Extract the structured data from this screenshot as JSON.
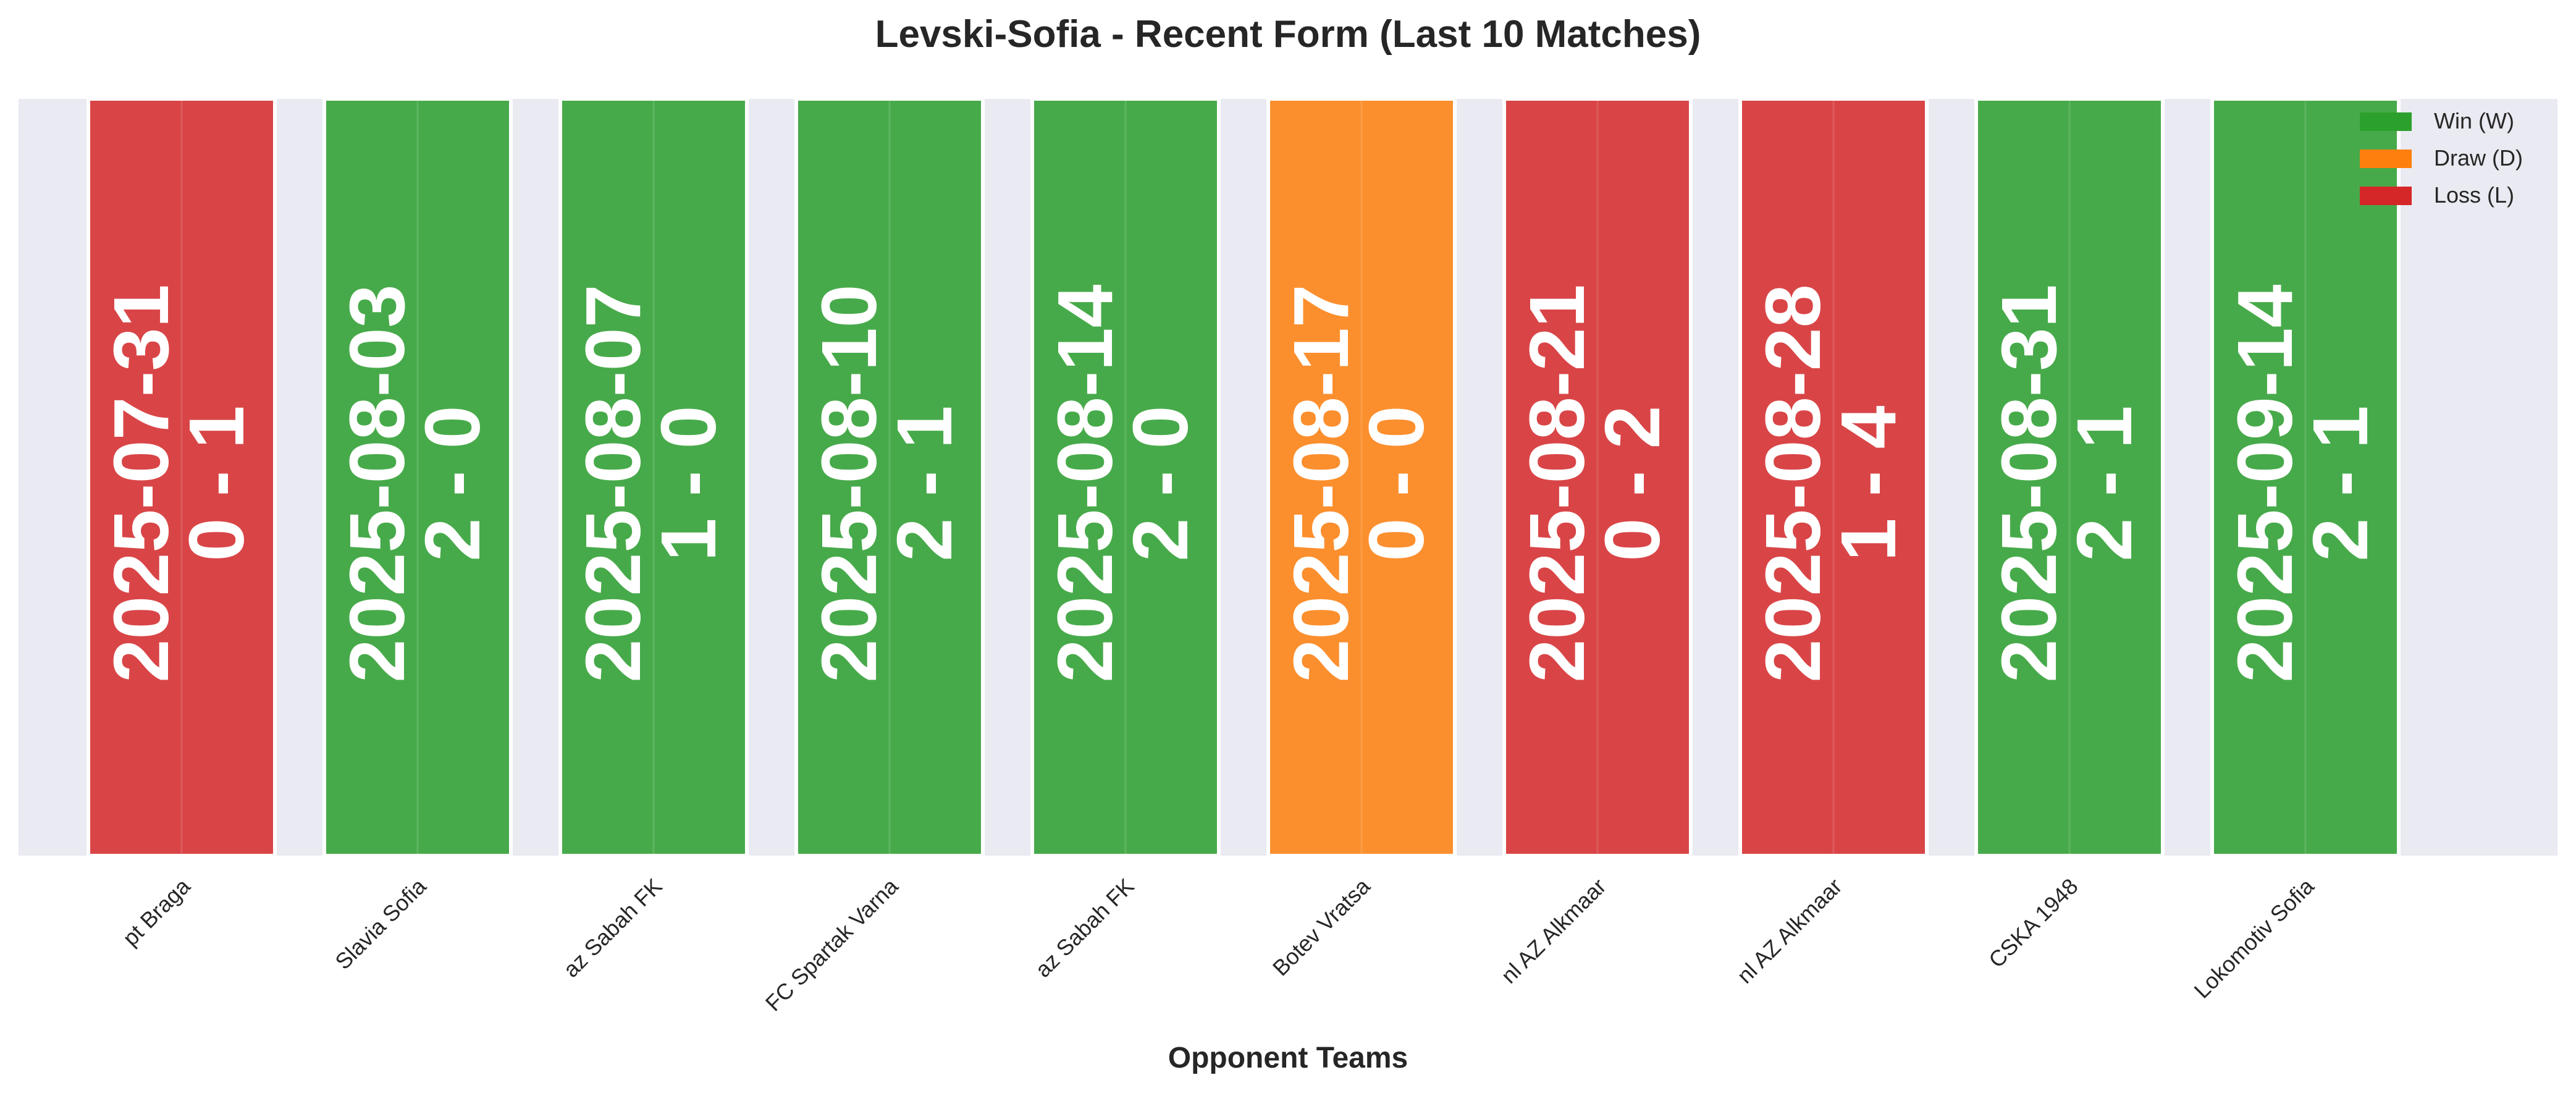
{
  "chart_data": {
    "type": "bar",
    "title": "Levski-Sofia - Recent Form (Last 10 Matches)",
    "xlabel": "Opponent Teams",
    "ylabel": "",
    "ylim": [
      0,
      1
    ],
    "grid": true,
    "legend_position": "top-right",
    "categories": [
      "pt Braga",
      "Slavia Sofia",
      "az Sabah FK",
      "FC Spartak Varna",
      "az Sabah FK",
      "Botev Vratsa",
      "nl AZ Alkmaar",
      "nl AZ Alkmaar",
      "CSKA 1948",
      "Lokomotiv Sofia"
    ],
    "matches": [
      {
        "opponent": "pt Braga",
        "date": "2025-07-31",
        "score": "0 - 1",
        "result": "L"
      },
      {
        "opponent": "Slavia Sofia",
        "date": "2025-08-03",
        "score": "2 - 0",
        "result": "W"
      },
      {
        "opponent": "az Sabah FK",
        "date": "2025-08-07",
        "score": "1 - 0",
        "result": "W"
      },
      {
        "opponent": "FC Spartak Varna",
        "date": "2025-08-10",
        "score": "2 - 1",
        "result": "W"
      },
      {
        "opponent": "az Sabah FK",
        "date": "2025-08-14",
        "score": "2 - 0",
        "result": "W"
      },
      {
        "opponent": "Botev Vratsa",
        "date": "2025-08-17",
        "score": "0 - 0",
        "result": "D"
      },
      {
        "opponent": "nl AZ Alkmaar",
        "date": "2025-08-21",
        "score": "0 - 2",
        "result": "L"
      },
      {
        "opponent": "nl AZ Alkmaar",
        "date": "2025-08-28",
        "score": "1 - 4",
        "result": "L"
      },
      {
        "opponent": "CSKA 1948",
        "date": "2025-08-31",
        "score": "2 - 1",
        "result": "W"
      },
      {
        "opponent": "Lokomotiv Sofia",
        "date": "2025-09-14",
        "score": "2 - 1",
        "result": "W"
      }
    ],
    "values": [
      1,
      1,
      1,
      1,
      1,
      1,
      1,
      1,
      1,
      1
    ],
    "legend": [
      {
        "key": "W",
        "label": "Win (W)",
        "color": "#2ca02c"
      },
      {
        "key": "D",
        "label": "Draw (D)",
        "color": "#ff7f0e"
      },
      {
        "key": "L",
        "label": "Loss (L)",
        "color": "#d62728"
      }
    ],
    "colors": {
      "W": "#47aa4a",
      "D": "#fb8f2e",
      "L": "#d94547",
      "background": "#eaeaf2"
    }
  }
}
